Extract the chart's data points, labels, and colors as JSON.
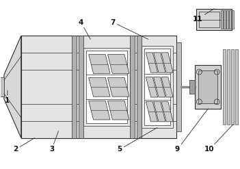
{
  "line_color": "#2a2a2a",
  "bg_color": "#f2f2f2",
  "body_fc": "#e0e0e0",
  "divider_fc": "#b8b8b8",
  "blade_fc": "#c8c8c8",
  "motor_fc": "#d0d0d0",
  "fin_fc": "#c0c0c0"
}
